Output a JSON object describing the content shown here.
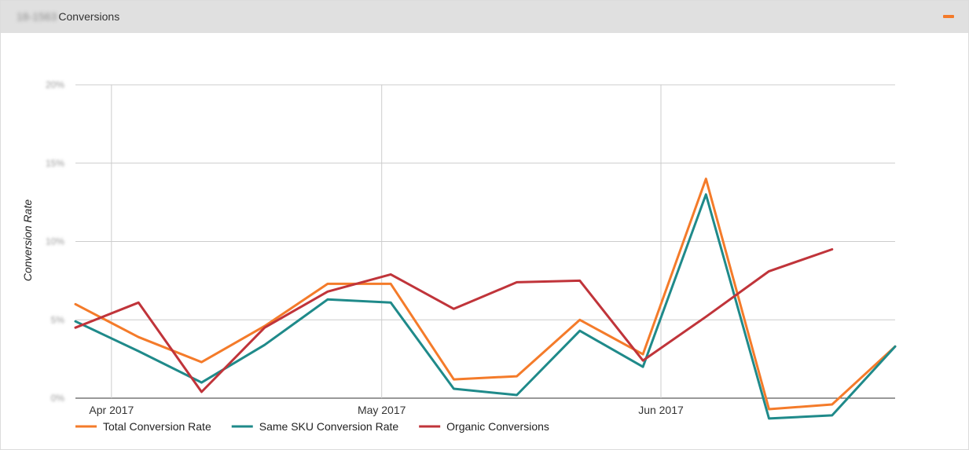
{
  "panel": {
    "title_prefix": "18-1563",
    "title": "Conversions",
    "collapse_color": "#f47b2a"
  },
  "chart_data": {
    "type": "line",
    "ylabel": "Conversion Rate",
    "yticks": [
      "0%",
      "5%",
      "10%",
      "15%",
      "20%"
    ],
    "ylim": [
      0,
      20
    ],
    "grid": true,
    "legend_position": "bottom-left",
    "x": [
      "2017-03-28",
      "2017-04-04",
      "2017-04-11",
      "2017-04-18",
      "2017-04-25",
      "2017-05-02",
      "2017-05-09",
      "2017-05-16",
      "2017-05-23",
      "2017-05-30",
      "2017-06-06",
      "2017-06-13",
      "2017-06-20",
      "2017-06-27"
    ],
    "xlim": [
      "2017-03-28",
      "2017-06-27"
    ],
    "xticks": [
      {
        "date": "2017-04-01",
        "label": "Apr 2017"
      },
      {
        "date": "2017-05-01",
        "label": "May 2017"
      },
      {
        "date": "2017-06-01",
        "label": "Jun 2017"
      }
    ],
    "series": [
      {
        "name": "Total Conversion Rate",
        "color": "#f47b2a",
        "values": [
          6.0,
          3.9,
          2.3,
          4.6,
          7.3,
          7.3,
          1.2,
          1.4,
          5.0,
          2.8,
          14.0,
          -0.7,
          -0.4,
          3.3
        ]
      },
      {
        "name": "Same SKU Conversion Rate",
        "color": "#1f8a8a",
        "values": [
          4.9,
          3.0,
          1.0,
          3.4,
          6.3,
          6.1,
          0.6,
          0.2,
          4.3,
          2.0,
          13.0,
          -1.3,
          -1.1,
          3.3
        ]
      },
      {
        "name": "Organic Conversions",
        "color": "#c0343a",
        "values": [
          4.5,
          6.1,
          0.4,
          4.5,
          6.8,
          7.9,
          5.7,
          7.4,
          7.5,
          2.4,
          5.2,
          8.1,
          9.5,
          null
        ]
      }
    ]
  }
}
